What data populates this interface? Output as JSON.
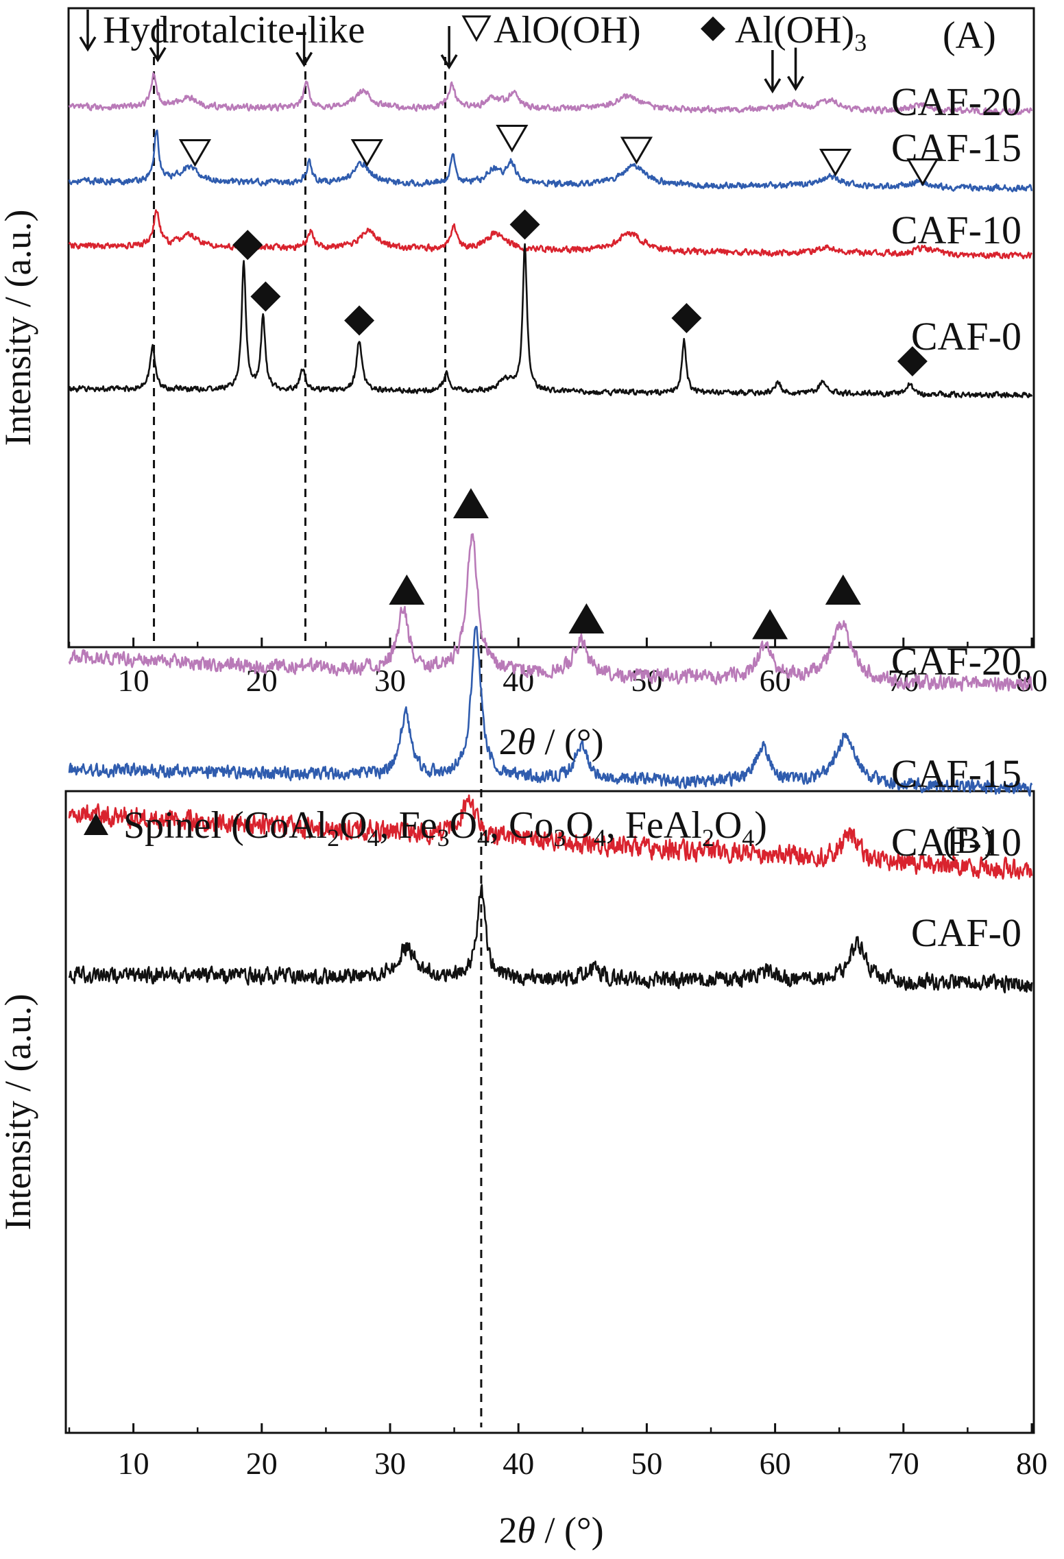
{
  "chart_data": [
    {
      "type": "line",
      "panel_label": "(A)",
      "xlabel_prefix": "2",
      "xlabel_theta": "θ",
      "xlabel_suffix": " / (°)",
      "ylabel": "Intensity / (a.u.)",
      "xlim": [
        5,
        80
      ],
      "xticks": [
        10,
        20,
        30,
        40,
        50,
        60,
        70,
        80
      ],
      "legend": [
        {
          "marker": "down-arrow",
          "label": "Hydrotalcite-like"
        },
        {
          "marker": "open-triangle-down",
          "label": "AlO(OH)"
        },
        {
          "marker": "filled-diamond",
          "label_main": "Al(OH)",
          "label_sub": "3"
        }
      ],
      "reference_lines_x": [
        11.6,
        23.4,
        34.3
      ],
      "series": [
        {
          "name": "CAF-20",
          "color": "#b97ab8",
          "offset": 3,
          "noise": 0.035,
          "baseline": [
            [
              5,
              0.04
            ],
            [
              80,
              0.0
            ]
          ],
          "peaks": [
            [
              11.6,
              0.28,
              0.25
            ],
            [
              14.2,
              0.08,
              0.9
            ],
            [
              23.5,
              0.22,
              0.25
            ],
            [
              27.9,
              0.14,
              0.8
            ],
            [
              34.8,
              0.2,
              0.3
            ],
            [
              38.0,
              0.08,
              0.8
            ],
            [
              39.6,
              0.12,
              0.5
            ],
            [
              48.5,
              0.11,
              1.2
            ],
            [
              61.5,
              0.05,
              0.8
            ],
            [
              64.3,
              0.08,
              1.0
            ],
            [
              71.5,
              0.05,
              1.0
            ]
          ],
          "markers": [
            {
              "type": "down-arrow",
              "x": 11.9,
              "y": 0.58
            },
            {
              "type": "down-arrow",
              "x": 23.3,
              "y": 0.54
            },
            {
              "type": "down-arrow",
              "x": 34.6,
              "y": 0.52
            },
            {
              "type": "down-arrow",
              "x": 59.8,
              "y": 0.32
            },
            {
              "type": "down-arrow",
              "x": 61.6,
              "y": 0.34
            }
          ]
        },
        {
          "name": "CAF-15",
          "color": "#2f5cae",
          "offset": 2,
          "noise": 0.035,
          "baseline": [
            [
              5,
              0.06
            ],
            [
              80,
              0.0
            ]
          ],
          "peaks": [
            [
              11.8,
              0.42,
              0.22
            ],
            [
              14.3,
              0.12,
              0.9
            ],
            [
              23.7,
              0.18,
              0.25
            ],
            [
              27.8,
              0.16,
              0.8
            ],
            [
              34.9,
              0.22,
              0.25
            ],
            [
              38.0,
              0.12,
              0.6
            ],
            [
              39.4,
              0.18,
              0.45
            ],
            [
              49.0,
              0.16,
              1.2
            ],
            [
              64.2,
              0.09,
              1.0
            ],
            [
              71.2,
              0.05,
              1.0
            ]
          ],
          "markers": [
            {
              "type": "open-triangle-down",
              "x": 14.8,
              "y": 0.3
            },
            {
              "type": "open-triangle-down",
              "x": 28.2,
              "y": 0.3
            },
            {
              "type": "open-triangle-down",
              "x": 39.5,
              "y": 0.42
            },
            {
              "type": "open-triangle-down",
              "x": 49.2,
              "y": 0.32
            },
            {
              "type": "open-triangle-down",
              "x": 64.7,
              "y": 0.22
            },
            {
              "type": "open-triangle-down",
              "x": 71.5,
              "y": 0.14
            }
          ]
        },
        {
          "name": "CAF-10",
          "color": "#d9232e",
          "offset": 1,
          "noise": 0.035,
          "baseline": [
            [
              5,
              0.08
            ],
            [
              80,
              0.0
            ]
          ],
          "peaks": [
            [
              11.8,
              0.28,
              0.3
            ],
            [
              14.3,
              0.1,
              0.9
            ],
            [
              23.8,
              0.14,
              0.3
            ],
            [
              28.3,
              0.16,
              0.8
            ],
            [
              35.0,
              0.18,
              0.3
            ],
            [
              38.3,
              0.14,
              1.0
            ],
            [
              48.7,
              0.15,
              1.2
            ],
            [
              64.0,
              0.05,
              1.0
            ],
            [
              71.6,
              0.05,
              1.0
            ]
          ],
          "markers": []
        },
        {
          "name": "CAF-0",
          "color": "#111111",
          "offset": 0,
          "noise": 0.03,
          "baseline": [
            [
              5,
              0.05
            ],
            [
              80,
              0.0
            ]
          ],
          "peaks": [
            [
              11.5,
              0.35,
              0.25
            ],
            [
              18.6,
              1.05,
              0.2
            ],
            [
              20.1,
              0.62,
              0.2
            ],
            [
              23.2,
              0.18,
              0.25
            ],
            [
              27.6,
              0.42,
              0.25
            ],
            [
              34.4,
              0.14,
              0.3
            ],
            [
              39.0,
              0.1,
              0.6
            ],
            [
              40.5,
              1.22,
              0.2
            ],
            [
              52.9,
              0.44,
              0.2
            ],
            [
              60.2,
              0.1,
              0.25
            ],
            [
              63.7,
              0.09,
              0.4
            ],
            [
              70.5,
              0.08,
              0.25
            ]
          ],
          "markers": [
            {
              "type": "filled-diamond",
              "x": 18.9,
              "y": 1.25
            },
            {
              "type": "filled-diamond",
              "x": 20.3,
              "y": 0.82
            },
            {
              "type": "filled-diamond",
              "x": 27.6,
              "y": 0.62
            },
            {
              "type": "filled-diamond",
              "x": 40.5,
              "y": 1.42
            },
            {
              "type": "filled-diamond",
              "x": 53.1,
              "y": 0.64
            },
            {
              "type": "filled-diamond",
              "x": 70.7,
              "y": 0.28
            }
          ]
        }
      ]
    },
    {
      "type": "line",
      "panel_label": "(B)",
      "xlabel_prefix": "2",
      "xlabel_theta": "θ",
      "xlabel_suffix": " / (°)",
      "ylabel": "Intensity / (a.u.)",
      "xlim": [
        5,
        80
      ],
      "xticks": [
        10,
        20,
        30,
        40,
        50,
        60,
        70,
        80
      ],
      "legend": [
        {
          "marker": "filled-triangle-up",
          "label_parts": [
            "Spinel (CoAl",
            "2",
            "O",
            "4",
            ", Fe",
            "3",
            "O",
            "4",
            ", Co",
            "3",
            "O",
            "4",
            ", FeAl",
            "2",
            "O",
            "4",
            ")"
          ]
        }
      ],
      "reference_lines_x": [
        37.1
      ],
      "series": [
        {
          "name": "CAF-20",
          "color": "#b97ab8",
          "offset": 3,
          "noise": 0.05,
          "baseline": [
            [
              5,
              0.15
            ],
            [
              20,
              0.1
            ],
            [
              80,
              0.0
            ]
          ],
          "peaks": [
            [
              31.0,
              0.32,
              0.5
            ],
            [
              36.4,
              0.72,
              0.5
            ],
            [
              44.8,
              0.18,
              0.6
            ],
            [
              59.2,
              0.16,
              0.7
            ],
            [
              65.2,
              0.3,
              0.9
            ]
          ],
          "markers": [
            {
              "type": "filled-triangle-up",
              "x": 31.3,
              "y": 0.5
            },
            {
              "type": "filled-triangle-up",
              "x": 36.3,
              "y": 0.95
            },
            {
              "type": "filled-triangle-up",
              "x": 45.3,
              "y": 0.35
            },
            {
              "type": "filled-triangle-up",
              "x": 59.6,
              "y": 0.32
            },
            {
              "type": "filled-triangle-up",
              "x": 65.3,
              "y": 0.5
            }
          ]
        },
        {
          "name": "CAF-15",
          "color": "#2f5cae",
          "offset": 2,
          "noise": 0.045,
          "baseline": [
            [
              5,
              0.1
            ],
            [
              80,
              0.0
            ]
          ],
          "peaks": [
            [
              31.2,
              0.32,
              0.5
            ],
            [
              36.7,
              0.78,
              0.45
            ],
            [
              44.9,
              0.18,
              0.6
            ],
            [
              59.0,
              0.18,
              0.7
            ],
            [
              65.5,
              0.26,
              0.9
            ]
          ],
          "markers": []
        },
        {
          "name": "CAF-10",
          "color": "#d9232e",
          "offset": 1,
          "noise": 0.07,
          "baseline": [
            [
              5,
              0.3
            ],
            [
              80,
              0.0
            ]
          ],
          "peaks": [
            [
              36.1,
              0.18,
              0.7
            ],
            [
              65.8,
              0.12,
              0.8
            ]
          ],
          "markers": []
        },
        {
          "name": "CAF-0",
          "color": "#111111",
          "offset": 0,
          "noise": 0.055,
          "baseline": [
            [
              5,
              0.05
            ],
            [
              80,
              0.0
            ]
          ],
          "peaks": [
            [
              31.3,
              0.16,
              0.8
            ],
            [
              37.1,
              0.45,
              0.4
            ],
            [
              45.8,
              0.06,
              0.7
            ],
            [
              59.4,
              0.05,
              0.8
            ],
            [
              66.4,
              0.2,
              0.8
            ]
          ],
          "markers": []
        }
      ]
    }
  ]
}
